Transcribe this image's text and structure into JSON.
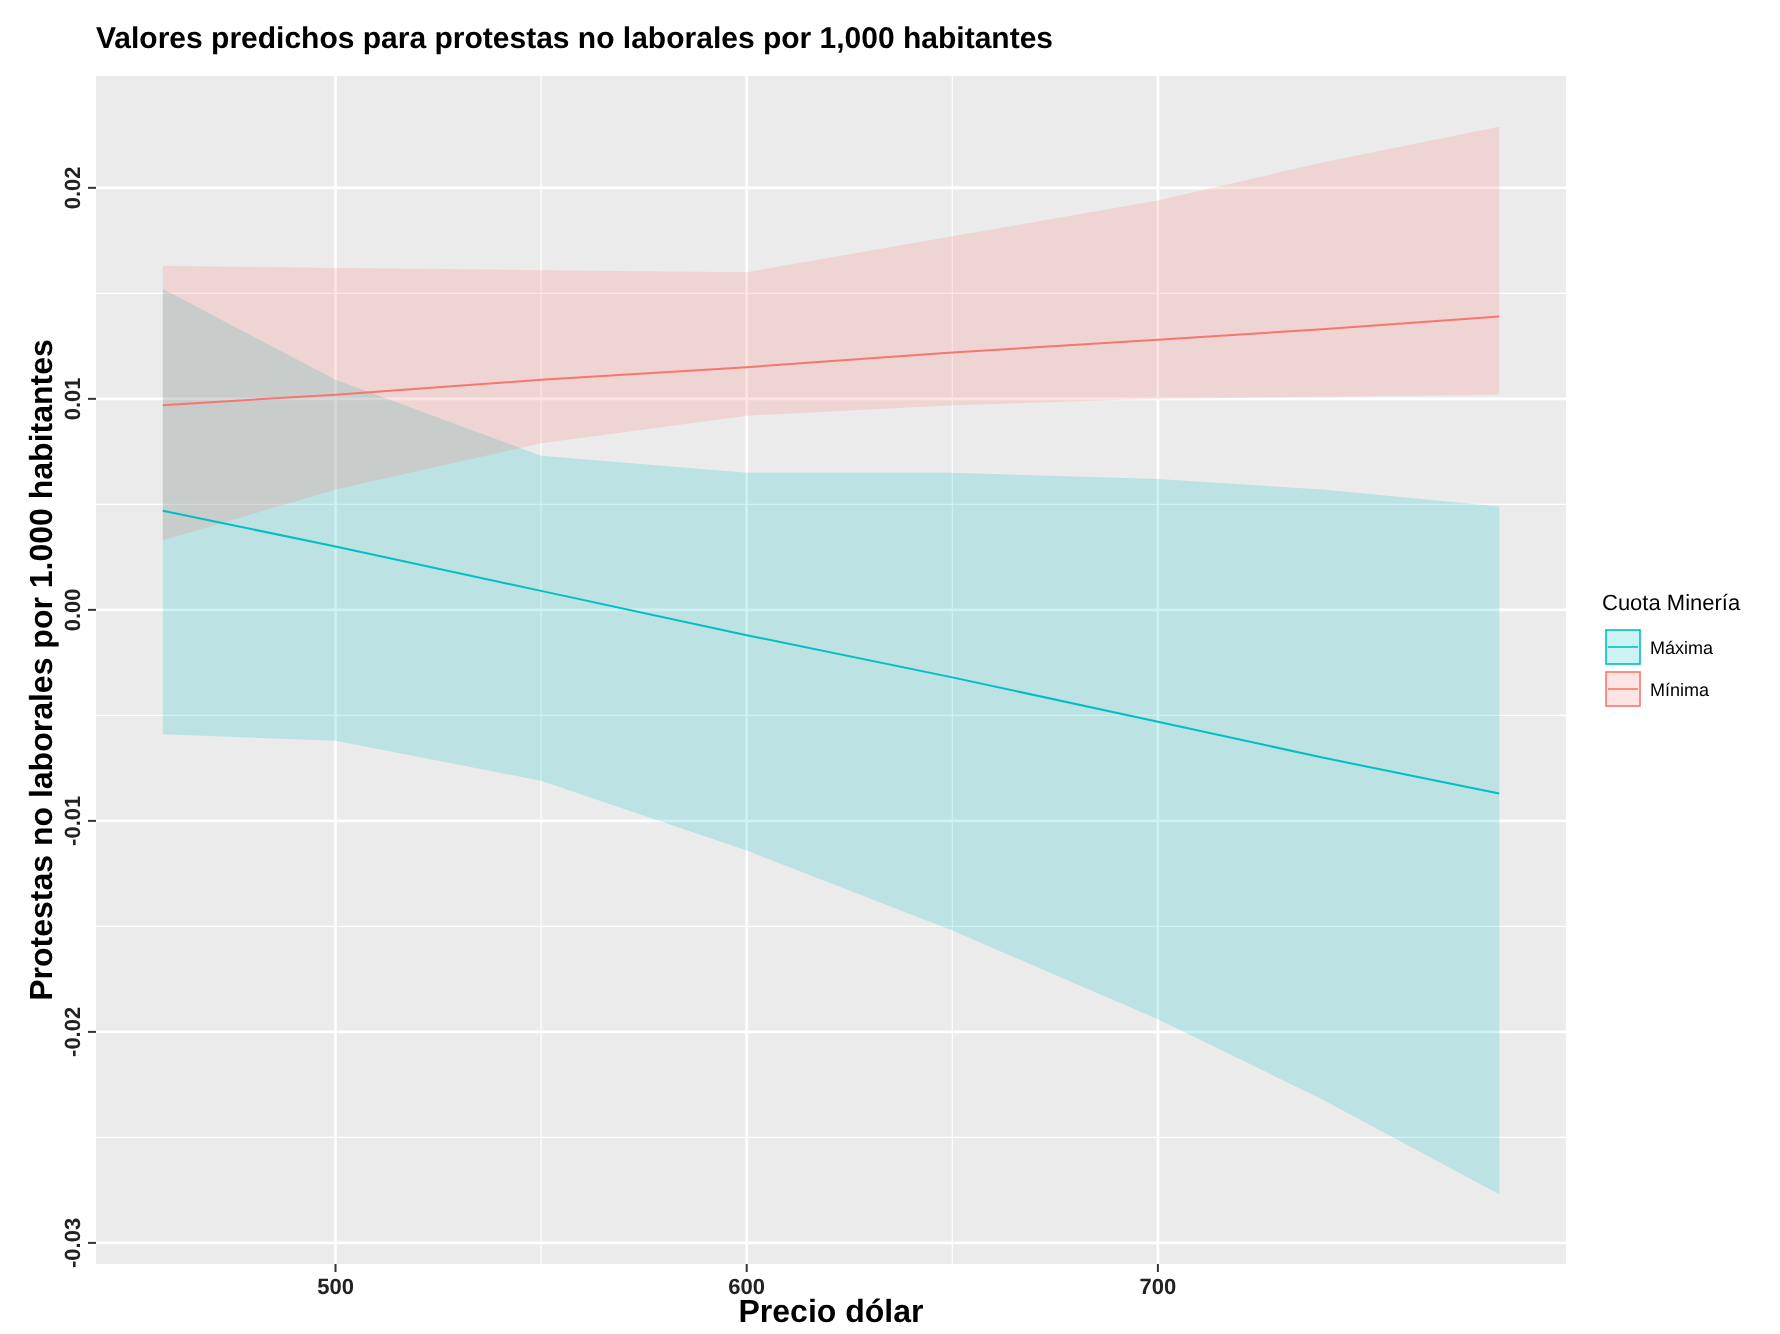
{
  "chart_data": {
    "type": "line",
    "title": "Valores predichos para protestas no laborales por 1,000 habitantes",
    "xlabel": "Precio dólar",
    "ylabel": "Protestas no laborales por 1.000 habitantes",
    "legend_title": "Cuota Minería",
    "legend": "right",
    "grid": true,
    "line_style": "solid",
    "x": [
      458,
      500,
      550,
      600,
      650,
      700,
      740,
      783
    ],
    "xlim": [
      441.75,
      799.25
    ],
    "xticks": [
      500,
      600,
      700
    ],
    "ylim": [
      -0.031,
      0.0253
    ],
    "yticks": [
      {
        "value": -0.03,
        "label": "-0.03"
      },
      {
        "value": -0.02,
        "label": "-0.02"
      },
      {
        "value": -0.01,
        "label": "-0.01"
      },
      {
        "value": 0,
        "label": "0.00"
      },
      {
        "value": 0.01,
        "label": "0.01"
      },
      {
        "value": 0.02,
        "label": "0.02"
      }
    ],
    "series": [
      {
        "name": "Máxima",
        "color": "#00bfc4",
        "values": [
          0.0047,
          0.003,
          0.0009,
          -0.0012,
          -0.0032,
          -0.0053,
          -0.007,
          -0.0087
        ],
        "lower": [
          -0.0059,
          -0.0062,
          -0.0081,
          -0.0114,
          -0.0152,
          -0.0194,
          -0.0232,
          -0.0277
        ],
        "upper": [
          0.0152,
          0.0109,
          0.0073,
          0.0065,
          0.0065,
          0.0062,
          0.0057,
          0.0049
        ]
      },
      {
        "name": "Mínima",
        "color": "#f8766d",
        "values": [
          0.0097,
          0.0102,
          0.0109,
          0.0115,
          0.0122,
          0.0128,
          0.0133,
          0.0139
        ],
        "lower": [
          0.0033,
          0.0057,
          0.0079,
          0.0092,
          0.0097,
          0.01,
          0.0101,
          0.0102
        ],
        "upper": [
          0.0163,
          0.0162,
          0.0161,
          0.016,
          0.0177,
          0.0194,
          0.0212,
          0.0229
        ]
      }
    ]
  }
}
